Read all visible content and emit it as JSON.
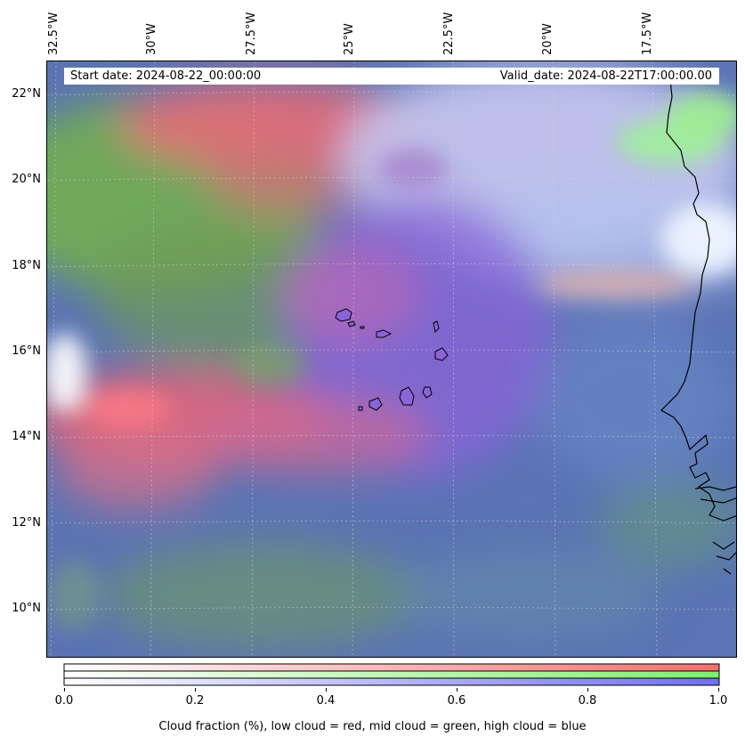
{
  "map": {
    "region": "Cape Verde / West African coast",
    "longitude_labels": [
      "32.5°W",
      "30°W",
      "27.5°W",
      "25°W",
      "22.5°W",
      "20°W",
      "17.5°W"
    ],
    "latitude_labels": [
      "22°N",
      "20°N",
      "18°N",
      "16°N",
      "14°N",
      "12°N",
      "10°N"
    ],
    "gridlines": true,
    "coastline_color": "#000000"
  },
  "info": {
    "start_date": "Start date: 2024-08-22_00:00:00",
    "valid_date": "Valid_date: 2024-08-22T17:00:00.00"
  },
  "colorbar": {
    "ticks": [
      "0.0",
      "0.2",
      "0.4",
      "0.6",
      "0.8",
      "1.0"
    ],
    "bands": [
      {
        "name": "low cloud",
        "color": "#f07070"
      },
      {
        "name": "mid cloud",
        "color": "#80ee70"
      },
      {
        "name": "high cloud",
        "color": "#7070ee"
      }
    ],
    "caption": "Cloud fraction (%), low cloud = red, mid cloud = green, high cloud = blue"
  }
}
